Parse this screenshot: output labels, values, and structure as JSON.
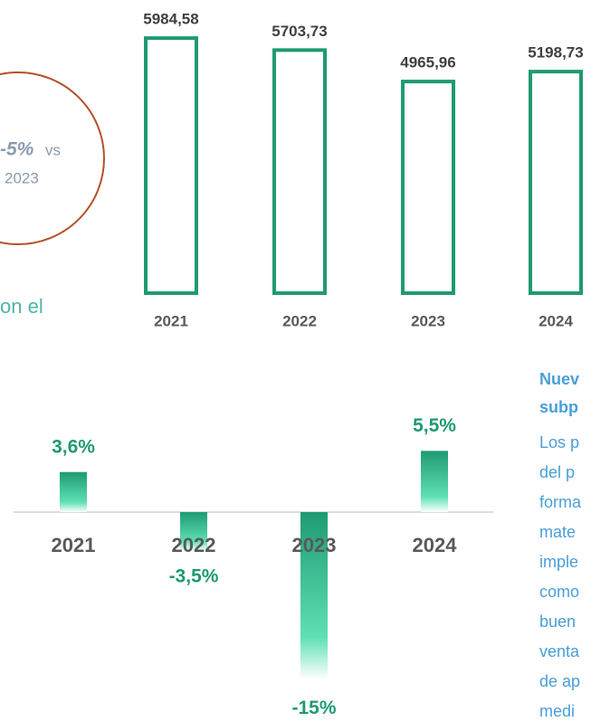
{
  "chart_data": [
    {
      "type": "bar",
      "style": "outline",
      "color": "#1f9a73",
      "categories": [
        "2021",
        "2022",
        "2023",
        "2024"
      ],
      "values": [
        5984.58,
        5703.73,
        4965.96,
        5198.73
      ],
      "value_labels": [
        "5984,58",
        "5703,73",
        "4965,96",
        "5198,73"
      ],
      "ylim": [
        0,
        6000
      ]
    },
    {
      "type": "bar",
      "style": "gradient",
      "color": "#1f9a73",
      "categories": [
        "2021",
        "2022",
        "2023",
        "2024"
      ],
      "values": [
        3.6,
        -3.5,
        -15,
        5.5
      ],
      "value_labels": [
        "3,6%",
        "-3,5%",
        "-15%",
        "5,5%"
      ],
      "ylim": [
        -16,
        6
      ]
    }
  ],
  "callout": {
    "value": "-5%",
    "vs": "vs",
    "year": "2023"
  },
  "left_fragment": "on el",
  "side_text": {
    "heading": [
      "Nuev",
      "subp"
    ],
    "lines": [
      "Los p",
      "del p",
      "forma",
      "mate",
      "imple",
      "como",
      "buen",
      "venta",
      "de ap",
      "medi"
    ]
  }
}
